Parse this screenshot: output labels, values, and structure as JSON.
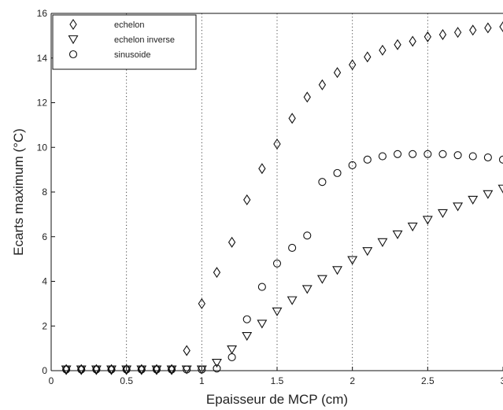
{
  "chart_data": {
    "type": "scatter",
    "xlabel": "Epaisseur de MCP (cm)",
    "ylabel": "Ecarts maximum (°C)",
    "xlim": [
      0,
      3
    ],
    "ylim": [
      0,
      16
    ],
    "xticks": [
      0,
      0.5,
      1,
      1.5,
      2,
      2.5,
      3
    ],
    "xtick_labels": [
      "0",
      "0.5",
      "1",
      "1.5",
      "2",
      "2.5",
      "3"
    ],
    "yticks": [
      0,
      2,
      4,
      6,
      8,
      10,
      12,
      14,
      16
    ],
    "ytick_labels": [
      "0",
      "2",
      "4",
      "6",
      "8",
      "10",
      "12",
      "14",
      "16"
    ],
    "grid": "vertical dotted lines at x = 0.5, 1, 1.5, 2, 2.5",
    "legend_position": "top-left",
    "series": [
      {
        "name": "echelon",
        "marker": "diamond",
        "x": [
          0.1,
          0.2,
          0.3,
          0.4,
          0.5,
          0.6,
          0.7,
          0.8,
          0.9,
          1.0,
          1.1,
          1.2,
          1.3,
          1.4,
          1.5,
          1.6,
          1.7,
          1.8,
          1.9,
          2.0,
          2.1,
          2.2,
          2.3,
          2.4,
          2.5,
          2.6,
          2.7,
          2.8,
          2.9,
          3.0
        ],
        "y": [
          0.05,
          0.05,
          0.05,
          0.05,
          0.05,
          0.05,
          0.05,
          0.05,
          0.9,
          3.0,
          4.4,
          5.75,
          7.65,
          9.05,
          10.15,
          11.3,
          12.25,
          12.8,
          13.35,
          13.7,
          14.05,
          14.35,
          14.6,
          14.75,
          14.95,
          15.05,
          15.15,
          15.25,
          15.35,
          15.4
        ]
      },
      {
        "name": "echelon inverse",
        "marker": "triangle-down",
        "x": [
          0.1,
          0.2,
          0.3,
          0.4,
          0.5,
          0.6,
          0.7,
          0.8,
          0.9,
          1.0,
          1.1,
          1.2,
          1.3,
          1.4,
          1.5,
          1.6,
          1.7,
          1.8,
          1.9,
          2.0,
          2.1,
          2.2,
          2.3,
          2.4,
          2.5,
          2.6,
          2.7,
          2.8,
          2.9,
          3.0
        ],
        "y": [
          0.05,
          0.05,
          0.05,
          0.05,
          0.05,
          0.05,
          0.05,
          0.05,
          0.05,
          0.05,
          0.35,
          0.95,
          1.55,
          2.1,
          2.65,
          3.15,
          3.65,
          4.1,
          4.5,
          4.95,
          5.35,
          5.75,
          6.1,
          6.45,
          6.75,
          7.05,
          7.35,
          7.65,
          7.9,
          8.15
        ]
      },
      {
        "name": "sinusoide",
        "marker": "circle",
        "x": [
          0.1,
          0.2,
          0.3,
          0.4,
          0.5,
          0.6,
          0.7,
          0.8,
          0.9,
          1.0,
          1.1,
          1.2,
          1.3,
          1.4,
          1.5,
          1.6,
          1.7,
          1.8,
          1.9,
          2.0,
          2.1,
          2.2,
          2.3,
          2.4,
          2.5,
          2.6,
          2.7,
          2.8,
          2.9,
          3.0
        ],
        "y": [
          0.05,
          0.05,
          0.05,
          0.05,
          0.05,
          0.05,
          0.05,
          0.05,
          0.05,
          0.05,
          0.1,
          0.6,
          2.3,
          3.75,
          4.8,
          5.5,
          6.05,
          8.45,
          8.85,
          9.2,
          9.45,
          9.6,
          9.7,
          9.7,
          9.7,
          9.7,
          9.65,
          9.6,
          9.55,
          9.45
        ]
      }
    ]
  }
}
